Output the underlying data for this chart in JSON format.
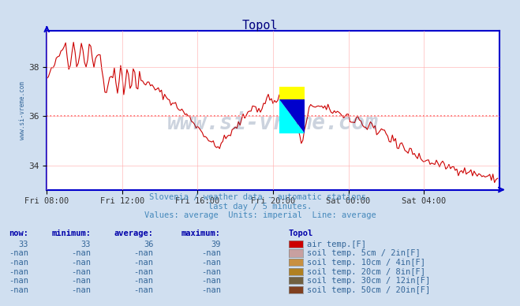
{
  "title": "Topol",
  "title_color": "#000080",
  "bg_color": "#d0dff0",
  "plot_bg_color": "#ffffff",
  "grid_color": "#ffaaaa",
  "axis_color": "#0000cc",
  "line_color": "#cc0000",
  "dashed_line_color": "#ff4444",
  "dashed_line_y": 36.0,
  "ylabel_text": "www.si-vreme.com",
  "subtitle1": "Slovenia / weather data - automatic stations.",
  "subtitle2": "last day / 5 minutes.",
  "subtitle3": "Values: average  Units: imperial  Line: average",
  "subtitle_color": "#4488bb",
  "watermark_color": "#1a3a6a",
  "watermark_text": "www.si-vreme.com",
  "table_header_color": "#0000aa",
  "table_data_color": "#336699",
  "now_val": "33",
  "min_val": "33",
  "avg_val": "36",
  "max_val": "39",
  "legend_items": [
    {
      "label": "air temp.[F]",
      "color": "#cc0000"
    },
    {
      "label": "soil temp. 5cm / 2in[F]",
      "color": "#c8a0a0"
    },
    {
      "label": "soil temp. 10cm / 4in[F]",
      "color": "#c89040"
    },
    {
      "label": "soil temp. 20cm / 8in[F]",
      "color": "#b08020"
    },
    {
      "label": "soil temp. 30cm / 12in[F]",
      "color": "#706040"
    },
    {
      "label": "soil temp. 50cm / 20in[F]",
      "color": "#804020"
    }
  ],
  "xtick_labels": [
    "Fri 08:00",
    "Fri 12:00",
    "Fri 16:00",
    "Fri 20:00",
    "Sat 00:00",
    "Sat 04:00"
  ],
  "xtick_positions": [
    0,
    48,
    96,
    144,
    192,
    240
  ],
  "ytick_labels": [
    "34",
    "36",
    "38"
  ],
  "ytick_values": [
    34,
    36,
    38
  ],
  "ymin": 33.0,
  "ymax": 39.5,
  "xmin": 0,
  "xmax": 288
}
